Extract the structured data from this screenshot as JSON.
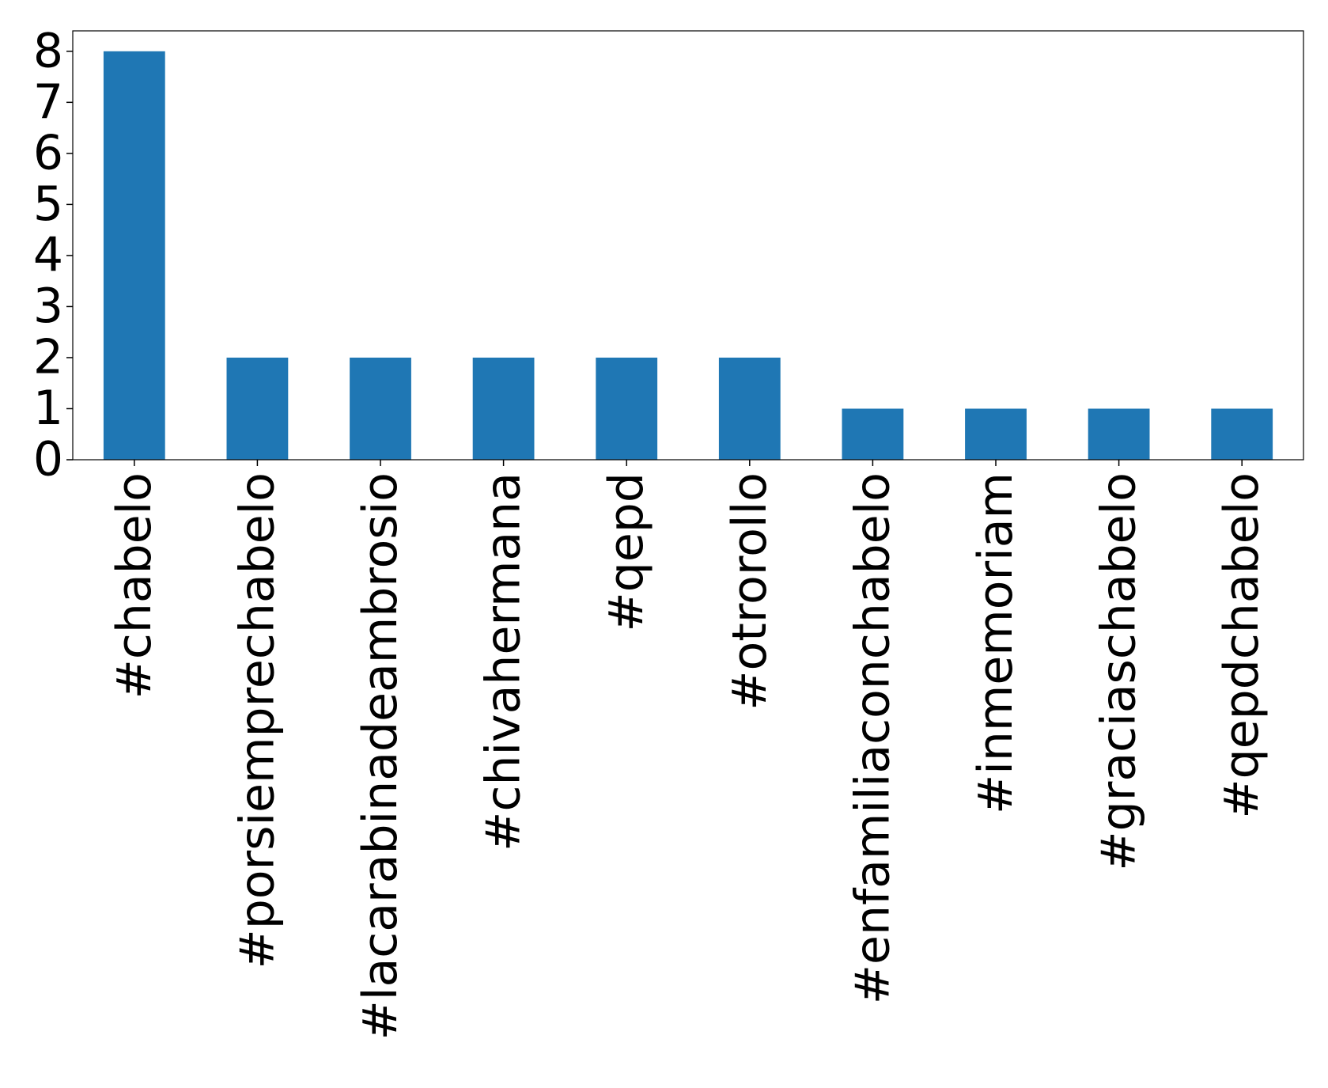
{
  "chart_data": {
    "type": "bar",
    "categories": [
      "#chabelo",
      "#porsiempre​chabelo",
      "#lacarabinadeambrosio",
      "#chivahermana",
      "#qepd",
      "#otrorollo",
      "#enfamiliaconchabelo",
      "#inmemoriam",
      "#graciaschabelo",
      "#qepdchabelo"
    ],
    "values": [
      8,
      2,
      2,
      2,
      2,
      2,
      1,
      1,
      1,
      1
    ],
    "color": "#1f77b4",
    "ylim": [
      0,
      8.4
    ],
    "yticks": [
      0,
      1,
      2,
      3,
      4,
      5,
      6,
      7,
      8
    ],
    "grid": false
  }
}
